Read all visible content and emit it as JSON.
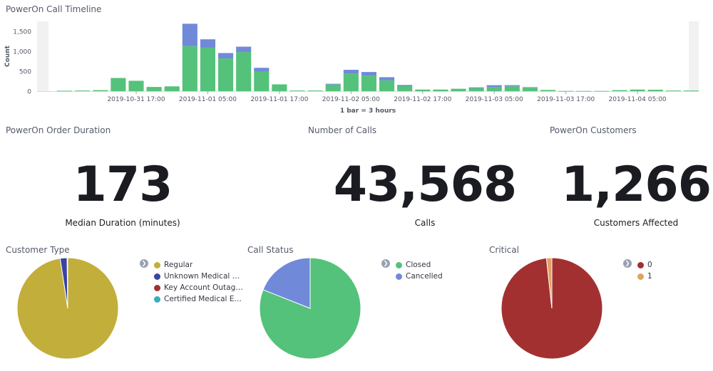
{
  "timeline": {
    "title": "PowerOn Call Timeline",
    "ylabel": "Count",
    "xlabel": "1 bar = 3 hours"
  },
  "metrics": {
    "duration": {
      "title": "PowerOn Order Duration",
      "value": "173",
      "label": "Median Duration (minutes)"
    },
    "calls": {
      "title": "Number of Calls",
      "value": "43,568",
      "label": "Calls"
    },
    "customers": {
      "title": "PowerOn Customers",
      "value": "1,266",
      "label": "Customers Affected"
    }
  },
  "pies": {
    "customer_type": {
      "title": "Customer Type",
      "legend": [
        "Regular",
        "Unknown Medical De...",
        "Key Account Outage ...",
        "Certified Medical Em..."
      ]
    },
    "call_status": {
      "title": "Call Status",
      "legend": [
        "Closed",
        "Cancelled"
      ]
    },
    "critical": {
      "title": "Critical",
      "legend": [
        "0",
        "1"
      ]
    }
  },
  "colors": {
    "green": "#54c27a",
    "blue": "#7089d9",
    "olive": "#c2ae3b",
    "navy": "#3843a3",
    "red": "#a33030",
    "teal": "#35adc2",
    "orange": "#e0a262"
  },
  "chart_data": [
    {
      "type": "bar",
      "stacked": true,
      "title": "PowerOn Call Timeline",
      "ylabel": "Count",
      "xlabel": "1 bar = 3 hours",
      "ylim": [
        0,
        1750
      ],
      "yticks": [
        "0",
        "500",
        "1,000",
        "1,500"
      ],
      "ytick_values": [
        0,
        500,
        1000,
        1500
      ],
      "xticks": [
        "2019-10-31 17:00",
        "2019-11-01 05:00",
        "2019-11-01 17:00",
        "2019-11-02 05:00",
        "2019-11-02 17:00",
        "2019-11-03 05:00",
        "2019-11-03 17:00",
        "2019-11-04 05:00"
      ],
      "xtick_bar_index": [
        4,
        8,
        12,
        16,
        20,
        24,
        28,
        32
      ],
      "series": [
        {
          "color": "#54c27a",
          "values": [
            10,
            15,
            25,
            330,
            260,
            105,
            120,
            1130,
            1090,
            820,
            980,
            490,
            170,
            15,
            15,
            165,
            440,
            390,
            270,
            125,
            40,
            40,
            60,
            80,
            105,
            120,
            85,
            30,
            5,
            5,
            5,
            25,
            40,
            35,
            15,
            15
          ]
        },
        {
          "color": "#7089d9",
          "values": [
            0,
            0,
            0,
            0,
            0,
            0,
            0,
            560,
            210,
            135,
            135,
            95,
            0,
            0,
            0,
            20,
            95,
            90,
            80,
            30,
            0,
            0,
            0,
            15,
            45,
            30,
            15,
            0,
            0,
            0,
            0,
            0,
            0,
            0,
            0,
            0
          ]
        }
      ]
    },
    {
      "type": "pie",
      "title": "Customer Type",
      "labels": [
        "Regular",
        "Unknown Medical De...",
        "Key Account Outage ...",
        "Certified Medical Em..."
      ],
      "values": [
        97.6,
        2.2,
        0.1,
        0.1
      ],
      "colors": [
        "#c2ae3b",
        "#3843a3",
        "#a33030",
        "#35adc2"
      ]
    },
    {
      "type": "pie",
      "title": "Call Status",
      "labels": [
        "Closed",
        "Cancelled"
      ],
      "values": [
        81,
        19
      ],
      "colors": [
        "#54c27a",
        "#7089d9"
      ]
    },
    {
      "type": "pie",
      "title": "Critical",
      "labels": [
        "0",
        "1"
      ],
      "values": [
        98.3,
        1.7
      ],
      "colors": [
        "#a33030",
        "#e0a262"
      ]
    }
  ]
}
